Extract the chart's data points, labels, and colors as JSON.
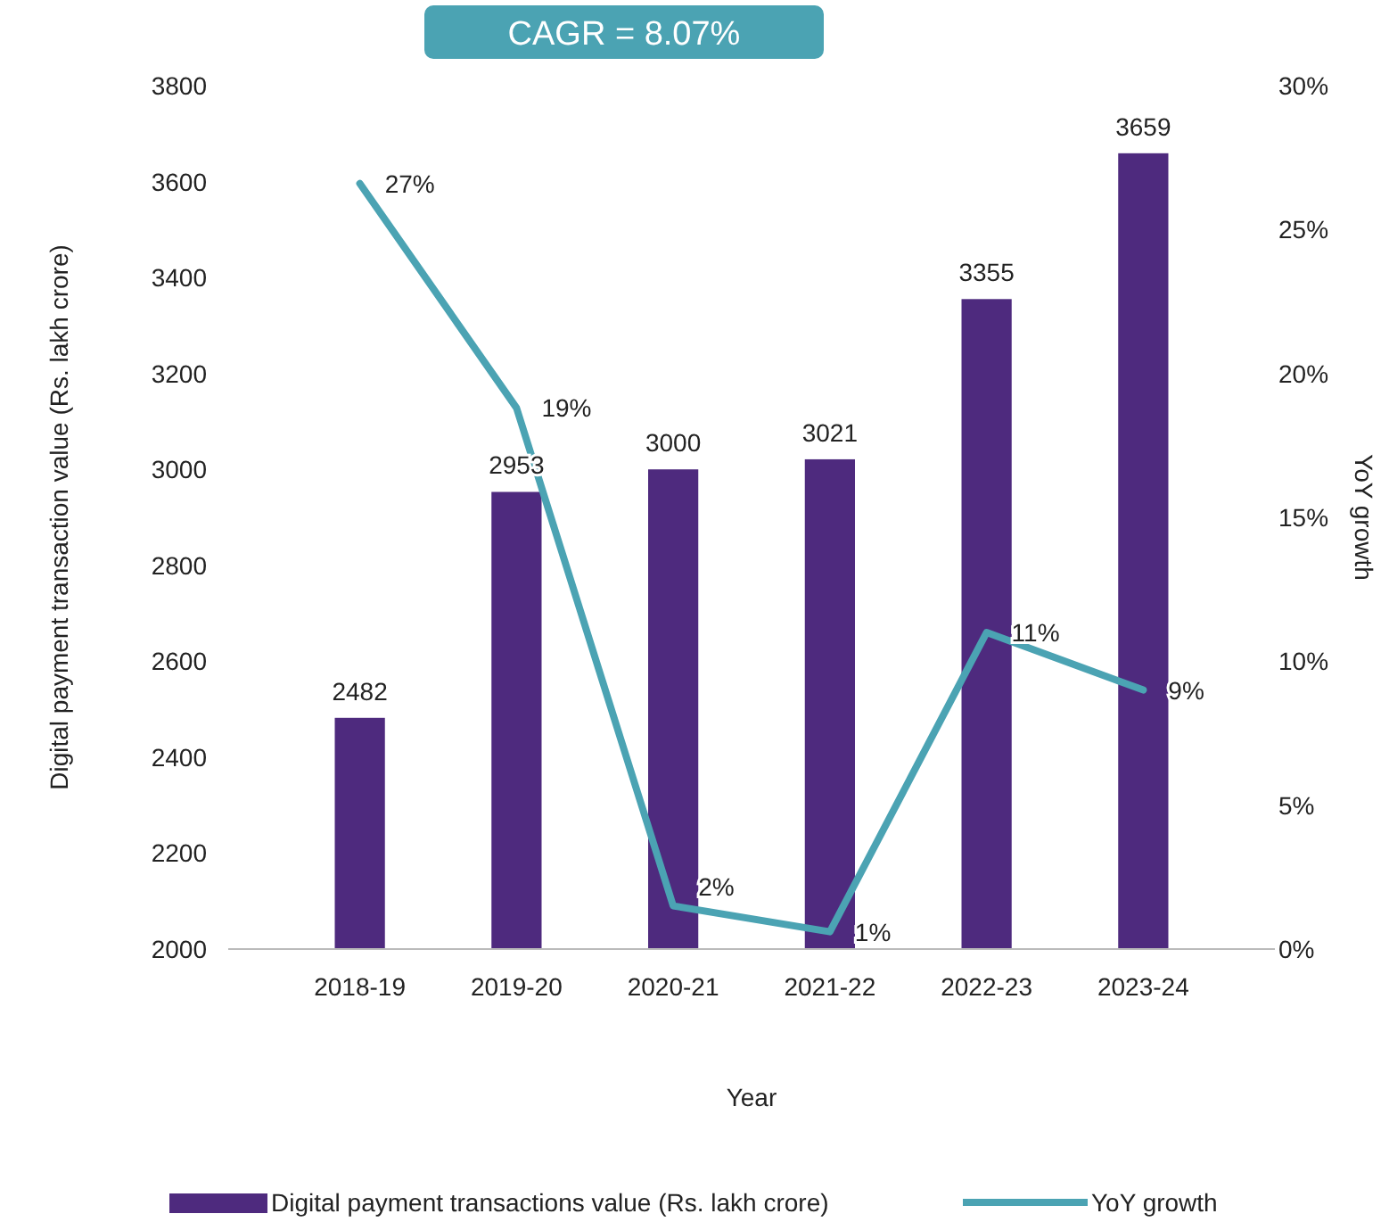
{
  "chart_data": {
    "type": "bar",
    "xlabel": "Year",
    "ylabel": "Digital payment transaction value (Rs. lakh crore)",
    "y2label": "YoY growth",
    "annotations": [
      "CAGR = 8.07%"
    ],
    "categories": [
      "2018-19",
      "2019-20",
      "2020-21",
      "2021-22",
      "2022-23",
      "2023-24"
    ],
    "series": [
      {
        "name": "Digital payment transactions value (Rs. lakh crore)",
        "color": "#4e2a7e",
        "values": [
          2482,
          2953,
          3000,
          3021,
          3355,
          3659
        ]
      },
      {
        "name": "YoY growth",
        "type": "line",
        "axis": "y2",
        "color": "#4ba3b3",
        "values": [
          26.6,
          18.8,
          1.5,
          0.6,
          11.0,
          9.0
        ],
        "value_labels": [
          "27%",
          "19%",
          "2%",
          "1%",
          "11%",
          "9%"
        ]
      }
    ],
    "data_labels": true,
    "legend": "bottom",
    "ylim": [
      2000,
      3800
    ],
    "yticks": [
      2000,
      2200,
      2400,
      2600,
      2800,
      3000,
      3200,
      3400,
      3600,
      3800
    ],
    "y2lim": [
      0,
      30
    ],
    "y2ticks": [
      {
        "value": 0,
        "label": "0%"
      },
      {
        "value": 5,
        "label": "5%"
      },
      {
        "value": 10,
        "label": "10%"
      },
      {
        "value": 15,
        "label": "15%"
      },
      {
        "value": 20,
        "label": "20%"
      },
      {
        "value": 25,
        "label": "25%"
      },
      {
        "value": 30,
        "label": "30%"
      }
    ]
  }
}
